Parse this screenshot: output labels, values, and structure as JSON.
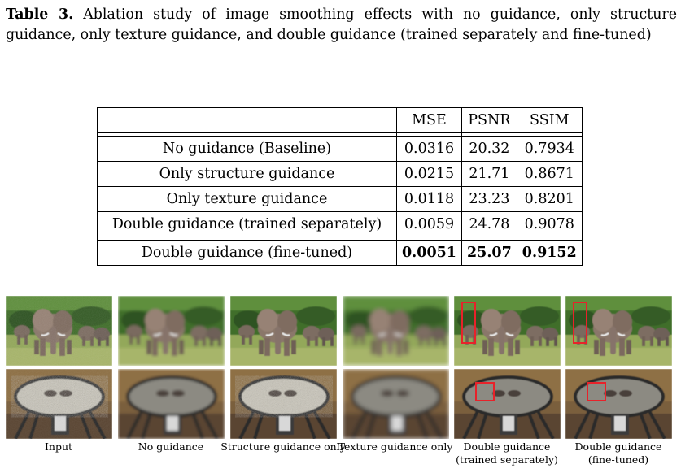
{
  "caption": {
    "label": "Table 3.",
    "text": "Ablation study of image smoothing effects with no guidance, only structure guidance, only texture guidance, and double guidance (trained separately and fine-tuned)"
  },
  "table": {
    "header": [
      "",
      "MSE",
      "PSNR",
      "SSIM"
    ],
    "rows": [
      {
        "method": "No guidance (Baseline)",
        "mse": "0.0316",
        "psnr": "20.32",
        "ssim": "0.7934"
      },
      {
        "method": "Only structure guidance",
        "mse": "0.0215",
        "psnr": "21.71",
        "ssim": "0.8671"
      },
      {
        "method": "Only texture guidance",
        "mse": "0.0118",
        "psnr": "23.23",
        "ssim": "0.8201"
      },
      {
        "method": "Double guidance (trained separately)",
        "mse": "0.0059",
        "psnr": "24.78",
        "ssim": "0.9078"
      },
      {
        "method": "Double guidance (fine-tuned)",
        "mse": "0.0051",
        "psnr": "25.07",
        "ssim": "0.9152"
      }
    ]
  },
  "figure": {
    "columns": [
      {
        "label": "Input"
      },
      {
        "label": "No guidance"
      },
      {
        "label": "Structure guidance only"
      },
      {
        "label": "Texture guidance only"
      },
      {
        "label": "Double guidance",
        "label2": "(trained separately)"
      },
      {
        "label": "Double guidance",
        "label2": "(fine-tuned)"
      }
    ]
  },
  "colors": {
    "highlight_box": "#e8222a"
  }
}
